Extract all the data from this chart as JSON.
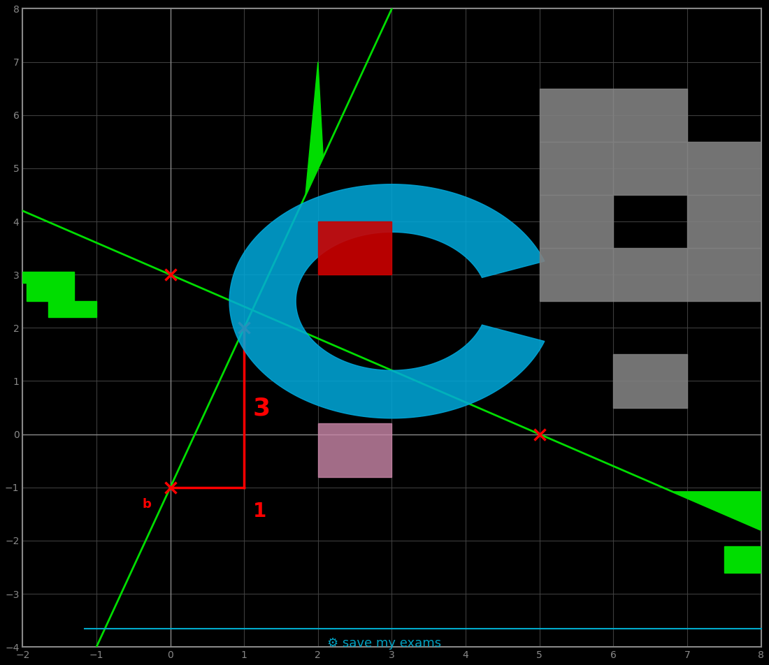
{
  "title": "",
  "xlim": [
    -2,
    8
  ],
  "ylim": [
    -4,
    8
  ],
  "xticks": [
    -2,
    -1,
    0,
    1,
    2,
    3,
    4,
    5,
    6,
    7,
    8
  ],
  "yticks": [
    -4,
    -3,
    -2,
    -1,
    0,
    1,
    2,
    3,
    4,
    5,
    6,
    7,
    8
  ],
  "line1_slope": 3,
  "line1_intercept": -1,
  "line1_color": "#00dd00",
  "line2_slope": -0.6,
  "line2_intercept": 3,
  "line2_color": "#00dd00",
  "bg_color": "#000000",
  "grid_color": "#444444",
  "axes_color": "#888888",
  "tick_color": "#888888",
  "spine_color": "#888888",
  "marker_color": "#ff0000",
  "marker_size": 12,
  "annotation_color": "#ff0000",
  "line_width": 2.0,
  "key_points_line1": [
    [
      0,
      -1
    ],
    [
      1,
      2
    ]
  ],
  "key_points_line2": [
    [
      0,
      3
    ],
    [
      5,
      0
    ]
  ],
  "label_3_text": "3",
  "label_1_text": "1",
  "label_b_text": "b",
  "watermark_text": "savemyexams",
  "figsize": [
    11.0,
    9.52
  ],
  "dpi": 100,
  "logo_color": "#00aacc",
  "gray_block_color": "#808080",
  "red_block_color": "#cc0000",
  "pink_block_color": "#cc88aa",
  "cyan_arc_color": "#00aadd"
}
